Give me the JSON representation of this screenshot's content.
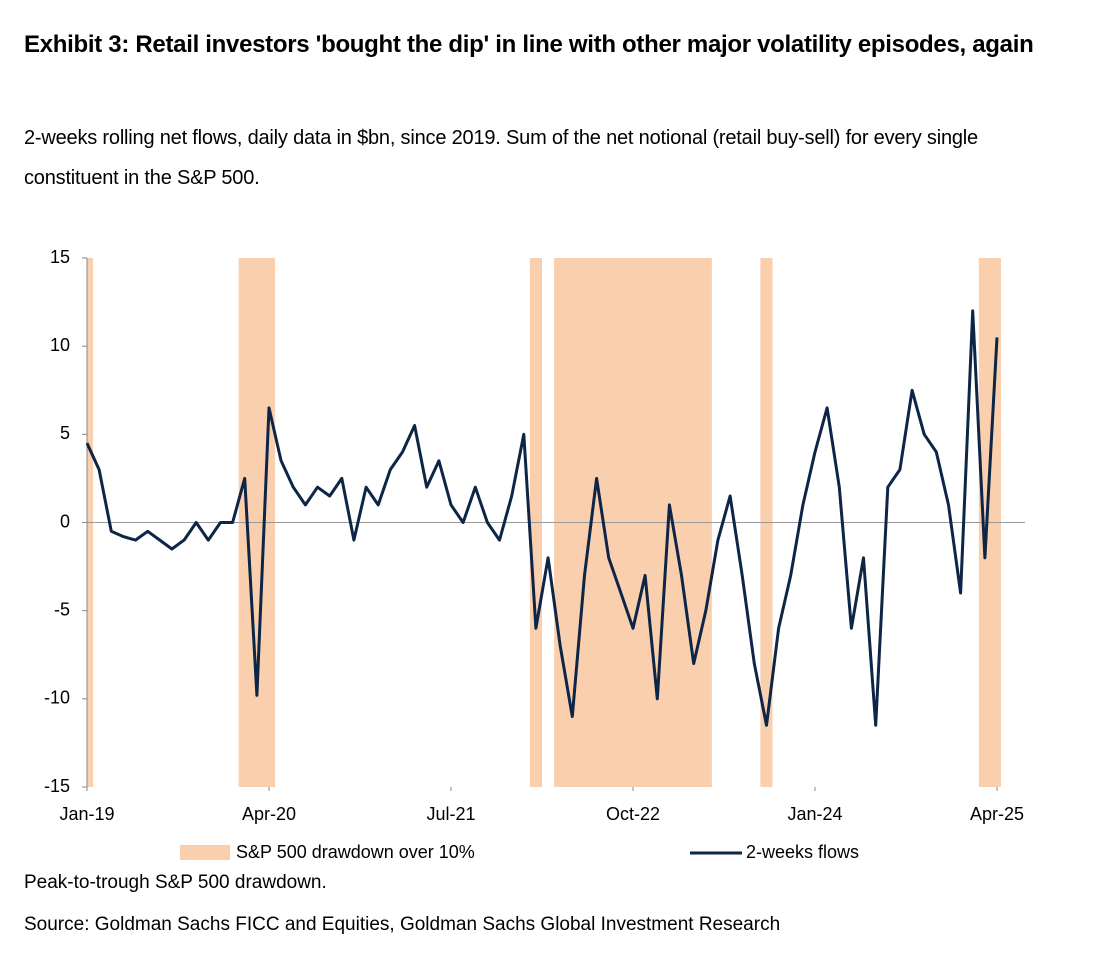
{
  "chart_data": {
    "type": "line",
    "title": "Exhibit 3: Retail investors 'bought the dip' in line with other major volatility episodes, again",
    "subtitle": "2-weeks rolling net flows, daily data in $bn, since 2019. Sum of the net notional (retail buy-sell) for every single constituent in the S&P 500.",
    "note": "Peak-to-trough S&P 500 drawdown.",
    "source": "Source: Goldman Sachs FICC and Equities, Goldman Sachs Global Investment Research",
    "x": [
      "2019-01",
      "2019-02",
      "2019-03",
      "2019-04",
      "2019-05",
      "2019-06",
      "2019-07",
      "2019-08",
      "2019-09",
      "2019-10",
      "2019-11",
      "2019-12",
      "2020-01",
      "2020-02",
      "2020-03",
      "2020-04",
      "2020-05",
      "2020-06",
      "2020-07",
      "2020-08",
      "2020-09",
      "2020-10",
      "2020-11",
      "2020-12",
      "2021-01",
      "2021-02",
      "2021-03",
      "2021-04",
      "2021-05",
      "2021-06",
      "2021-07",
      "2021-08",
      "2021-09",
      "2021-10",
      "2021-11",
      "2021-12",
      "2022-01",
      "2022-02",
      "2022-03",
      "2022-04",
      "2022-05",
      "2022-06",
      "2022-07",
      "2022-08",
      "2022-09",
      "2022-10",
      "2022-11",
      "2022-12",
      "2023-01",
      "2023-02",
      "2023-03",
      "2023-04",
      "2023-05",
      "2023-06",
      "2023-07",
      "2023-08",
      "2023-09",
      "2023-10",
      "2023-11",
      "2023-12",
      "2024-01",
      "2024-02",
      "2024-03",
      "2024-04",
      "2024-05",
      "2024-06",
      "2024-07",
      "2024-08",
      "2024-09",
      "2024-10",
      "2024-11",
      "2024-12",
      "2025-01",
      "2025-02",
      "2025-03",
      "2025-04"
    ],
    "series": [
      {
        "name": "2-weeks flows",
        "color": "#0d2546",
        "values": [
          4.5,
          3,
          -0.5,
          -0.8,
          -1,
          -0.5,
          -1,
          -1.5,
          -1,
          0,
          -1,
          0,
          0,
          2.5,
          -9.8,
          6.5,
          3.5,
          2,
          1,
          2,
          1.5,
          2.5,
          -1,
          2,
          1,
          3,
          4,
          5.5,
          2,
          3.5,
          1,
          0,
          2,
          0,
          -1,
          1.5,
          5,
          -6,
          -2,
          -7,
          -11,
          -3,
          2.5,
          -2,
          -4,
          -6,
          -3,
          -10,
          1,
          -3,
          -8,
          -5,
          -1,
          1.5,
          -3,
          -8,
          -11.5,
          -6,
          -3,
          1,
          4,
          6.5,
          2,
          -6,
          -2,
          -11.5,
          2,
          3,
          7.5,
          5,
          4,
          1,
          -4,
          12,
          -2,
          10.5
        ]
      }
    ],
    "shaded_regions": {
      "name": "S&P 500 drawdown over 10%",
      "color": "#f9cfae",
      "spans": [
        [
          "2019-01",
          "2019-01"
        ],
        [
          "2020-02",
          "2020-04"
        ],
        [
          "2022-02",
          "2022-02"
        ],
        [
          "2022-04",
          "2023-04"
        ],
        [
          "2023-09",
          "2023-09"
        ],
        [
          "2025-03",
          "2025-04"
        ]
      ]
    },
    "xlim": [
      "2019-01",
      "2025-04"
    ],
    "xticks": [
      {
        "value": "2019-01",
        "label": "Jan-19"
      },
      {
        "value": "2020-04",
        "label": "Apr-20"
      },
      {
        "value": "2021-07",
        "label": "Jul-21"
      },
      {
        "value": "2022-10",
        "label": "Oct-22"
      },
      {
        "value": "2024-01",
        "label": "Jan-24"
      },
      {
        "value": "2025-04",
        "label": "Apr-25"
      }
    ],
    "ylim": [
      -15,
      15
    ],
    "yticks": [
      -15,
      -10,
      -5,
      0,
      5,
      10,
      15
    ]
  }
}
